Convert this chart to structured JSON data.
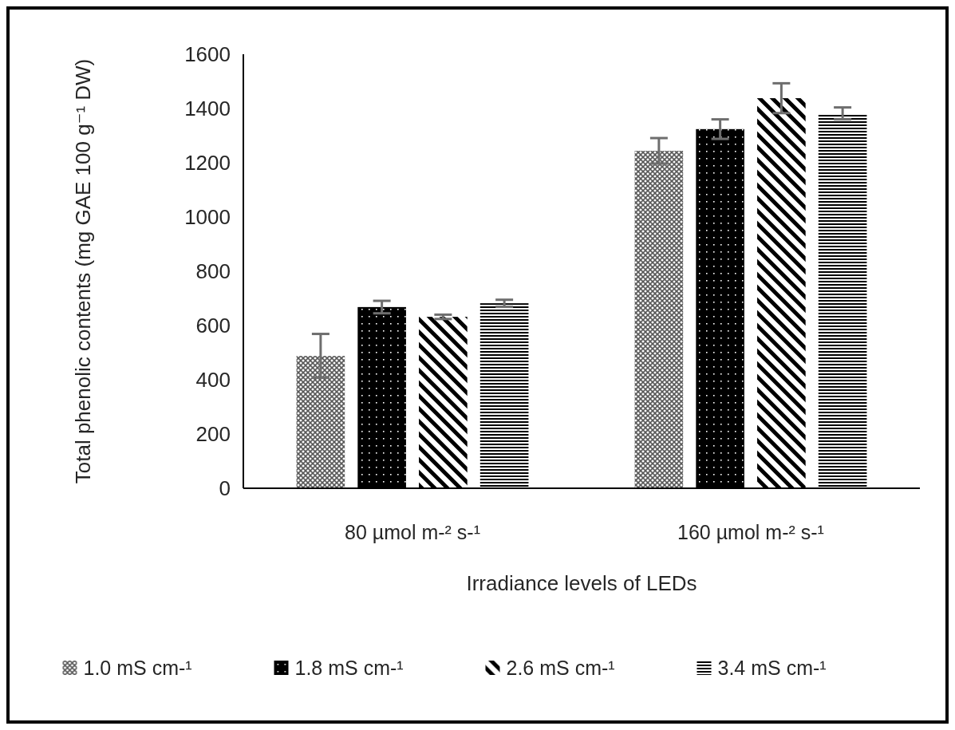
{
  "chart_data": {
    "type": "bar",
    "xlabel": "Irradiance levels of LEDs",
    "ylabel": "Total phenolic contents (mg GAE 100 g⁻¹ DW)",
    "categories": [
      "80 µmol m-² s-¹",
      "160 µmol m-² s-¹"
    ],
    "series": [
      {
        "name": "1.0 mS cm-¹",
        "color": "#595959",
        "values": [
          488,
          1244
        ],
        "errors": [
          81,
          47
        ]
      },
      {
        "name": "1.8 mS cm-¹",
        "color": "#000000",
        "values": [
          668,
          1324
        ],
        "errors": [
          23,
          36
        ]
      },
      {
        "name": "2.6 mS cm-¹",
        "color": "#000000",
        "values": [
          632,
          1438
        ],
        "errors": [
          8,
          55
        ]
      },
      {
        "name": "3.4 mS cm-¹",
        "color": "#000000",
        "values": [
          682,
          1382
        ],
        "errors": [
          13,
          22
        ]
      }
    ],
    "ylim": [
      0,
      1600
    ],
    "yticks": [
      0,
      200,
      400,
      600,
      800,
      1000,
      1200,
      1400,
      1600
    ],
    "grid": false,
    "legend": "bottom"
  }
}
